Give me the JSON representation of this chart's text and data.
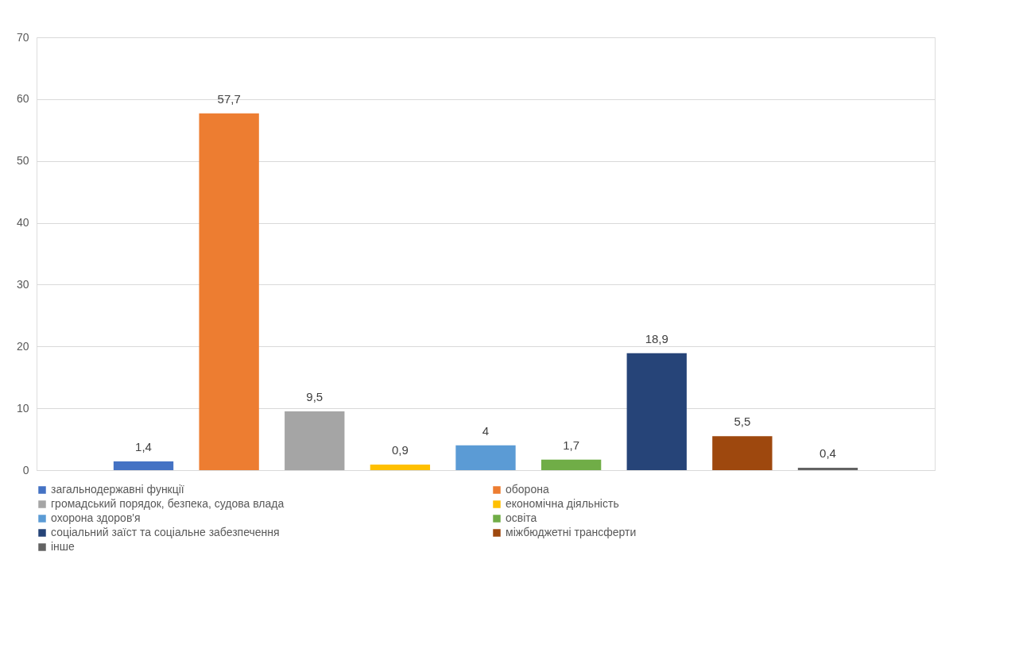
{
  "chart_data": {
    "type": "bar",
    "categories": [
      null
    ],
    "series": [
      {
        "name": "загальнодержавні функції",
        "color": "#4472c4",
        "values": [
          1.4
        ],
        "value_labels": [
          "1,4"
        ]
      },
      {
        "name": "оборона",
        "color": "#ed7d31",
        "values": [
          57.7
        ],
        "value_labels": [
          "57,7"
        ]
      },
      {
        "name": "громадський порядок, безпека, судова влада",
        "color": "#a5a5a5",
        "values": [
          9.5
        ],
        "value_labels": [
          "9,5"
        ]
      },
      {
        "name": "економічна діяльність",
        "color": "#ffc000",
        "values": [
          0.9
        ],
        "value_labels": [
          "0,9"
        ]
      },
      {
        "name": "охорона здоров'я",
        "color": "#5b9bd5",
        "values": [
          4
        ],
        "value_labels": [
          "4"
        ]
      },
      {
        "name": "освіта",
        "color": "#70ad47",
        "values": [
          1.7
        ],
        "value_labels": [
          "1,7"
        ]
      },
      {
        "name": "соціальний заїст та соціальне забезпечення",
        "color": "#264478",
        "values": [
          18.9
        ],
        "value_labels": [
          "18,9"
        ]
      },
      {
        "name": "міжбюджетні трансферти",
        "color": "#9e480e",
        "values": [
          5.5
        ],
        "value_labels": [
          "5,5"
        ]
      },
      {
        "name": "інше",
        "color": "#636363",
        "values": [
          0.4
        ],
        "value_labels": [
          "0,4"
        ]
      }
    ],
    "ylim": [
      0,
      70
    ],
    "yticks": [
      0,
      10,
      20,
      30,
      40,
      50,
      60,
      70
    ],
    "grid": "y",
    "legend": "bottom",
    "tick_labels": "y"
  }
}
